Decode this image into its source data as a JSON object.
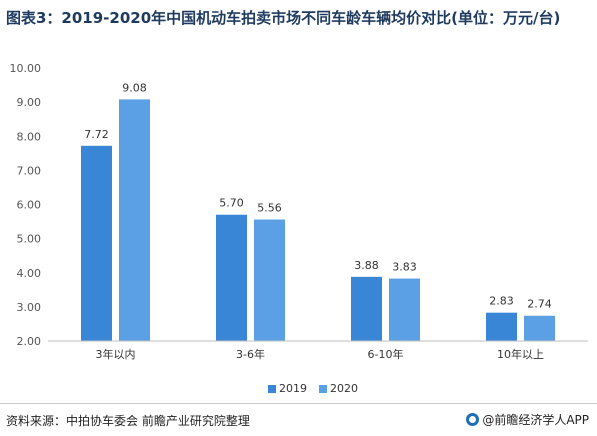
{
  "title": "图表3：2019-2020年中国机动车拍卖市场不同车龄车辆均价对比(单位：万元/台)",
  "chart_data": {
    "type": "bar",
    "categories": [
      "3年以内",
      "3-6年",
      "6-10年",
      "10年以上"
    ],
    "series": [
      {
        "name": "2019",
        "values": [
          7.72,
          5.7,
          3.88,
          2.83
        ],
        "labels": [
          "7.72",
          "5.70",
          "3.88",
          "2.83"
        ],
        "color": "#3a86d6"
      },
      {
        "name": "2020",
        "values": [
          9.08,
          5.56,
          3.83,
          2.74
        ],
        "labels": [
          "9.08",
          "5.56",
          "3.83",
          "2.74"
        ],
        "color": "#5b9fe4"
      }
    ],
    "ylim": [
      2.0,
      10.0
    ],
    "yticks": [
      "2.00",
      "3.00",
      "4.00",
      "5.00",
      "6.00",
      "7.00",
      "8.00",
      "9.00",
      "10.00"
    ],
    "legend_position": "bottom",
    "grid": false
  },
  "footer": {
    "source": "资料来源：中拍协车委会 前瞻产业研究院整理",
    "brand": "@前瞻经济学人APP"
  }
}
